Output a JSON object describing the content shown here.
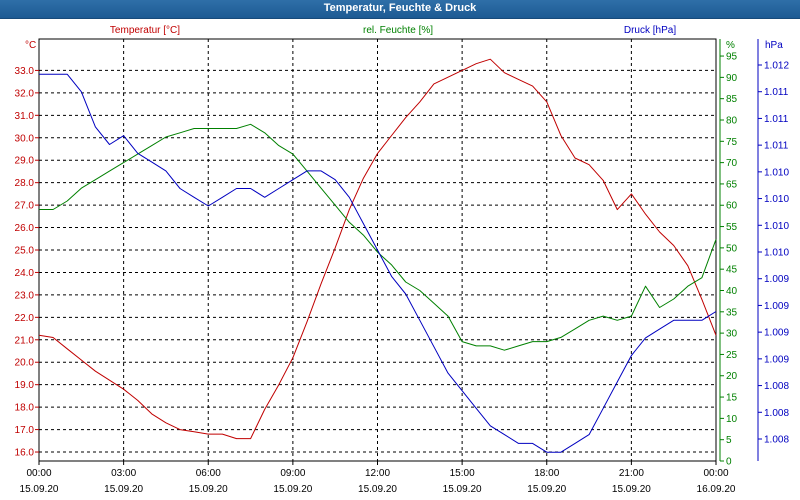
{
  "window": {
    "title": "Temperatur, Feuchte & Druck"
  },
  "colors": {
    "temperature": "#c00000",
    "humidity": "#008000",
    "pressure": "#0000c0",
    "grid": "#000000",
    "axis": "#000000"
  },
  "chart_data": {
    "type": "line",
    "title": "Temperatur, Feuchte & Druck",
    "grid": true,
    "x_axis": {
      "ticks": [
        {
          "time": "00:00",
          "date": "15.09.20"
        },
        {
          "time": "03:00",
          "date": "15.09.20"
        },
        {
          "time": "06:00",
          "date": "15.09.20"
        },
        {
          "time": "09:00",
          "date": "15.09.20"
        },
        {
          "time": "12:00",
          "date": "15.09.20"
        },
        {
          "time": "15:00",
          "date": "15.09.20"
        },
        {
          "time": "18:00",
          "date": "15.09.20"
        },
        {
          "time": "21:00",
          "date": "15.09.20"
        },
        {
          "time": "00:00",
          "date": "16.09.20"
        }
      ],
      "range_hours": [
        0,
        24
      ]
    },
    "axes": {
      "temperature": {
        "label": "Temperatur [°C]",
        "unit": "°C",
        "range": [
          15.6,
          34.4
        ],
        "ticks": [
          "16.0",
          "17.0",
          "18.0",
          "19.0",
          "20.0",
          "21.0",
          "22.0",
          "23.0",
          "24.0",
          "25.0",
          "26.0",
          "27.0",
          "28.0",
          "29.0",
          "30.0",
          "31.0",
          "32.0",
          "33.0"
        ]
      },
      "humidity": {
        "label": "rel. Feuchte [%]",
        "unit": "%",
        "range": [
          0,
          99
        ],
        "ticks": [
          "0",
          "5",
          "10",
          "15",
          "20",
          "25",
          "30",
          "35",
          "40",
          "45",
          "50",
          "55",
          "60",
          "65",
          "70",
          "75",
          "80",
          "85",
          "90",
          "95"
        ]
      },
      "pressure": {
        "label": "Druck [hPa]",
        "unit": "hPa",
        "range": [
          1.0077,
          1.0125
        ],
        "ticks": [
          "1.008",
          "1.008",
          "1.008",
          "1.009",
          "1.009",
          "1.009",
          "1.009",
          "1.010",
          "1.010",
          "1.010",
          "1.010",
          "1.011",
          "1.011",
          "1.011",
          "1.012"
        ]
      }
    },
    "series": [
      {
        "name": "Temperatur [°C]",
        "axis": "temperature",
        "x": [
          0,
          0.5,
          1,
          1.5,
          2,
          2.5,
          3,
          3.5,
          4,
          4.5,
          5,
          5.5,
          6,
          6.5,
          7,
          7.5,
          8,
          8.5,
          9,
          9.5,
          10,
          10.5,
          11,
          11.5,
          12,
          12.5,
          13,
          13.5,
          14,
          14.5,
          15,
          15.5,
          16,
          16.5,
          17,
          17.5,
          18,
          18.5,
          19,
          19.5,
          20,
          20.5,
          21,
          21.5,
          22,
          22.5,
          23,
          23.5,
          24
        ],
        "y": [
          21.2,
          21.1,
          20.6,
          20.1,
          19.6,
          19.2,
          18.8,
          18.3,
          17.7,
          17.3,
          17.0,
          16.9,
          16.8,
          16.8,
          16.6,
          16.6,
          17.9,
          19.0,
          20.2,
          21.8,
          23.5,
          25.1,
          26.8,
          28.2,
          29.3,
          30.1,
          30.9,
          31.6,
          32.4,
          32.7,
          33.0,
          33.3,
          33.5,
          32.9,
          32.6,
          32.3,
          31.6,
          30.1,
          29.1,
          28.8,
          28.1,
          26.8,
          27.5,
          26.6,
          25.8,
          25.2,
          24.3,
          22.8,
          21.2
        ]
      },
      {
        "name": "rel. Feuchte [%]",
        "axis": "humidity",
        "x": [
          0,
          0.5,
          1,
          1.5,
          2,
          2.5,
          3,
          3.5,
          4,
          4.5,
          5,
          5.5,
          6,
          6.5,
          7,
          7.5,
          8,
          8.5,
          9,
          9.5,
          10,
          10.5,
          11,
          11.5,
          12,
          12.5,
          13,
          13.5,
          14,
          14.5,
          15,
          15.5,
          16,
          16.5,
          17,
          17.5,
          18,
          18.5,
          19,
          19.5,
          20,
          20.5,
          21,
          21.5,
          22,
          22.5,
          23,
          23.5,
          24
        ],
        "y": [
          59,
          59,
          61,
          64,
          66,
          68,
          70,
          72,
          74,
          76,
          77,
          78,
          78,
          78,
          78,
          79,
          77,
          74,
          72,
          68,
          64,
          60,
          56,
          53,
          49,
          46,
          42,
          40,
          37,
          34,
          28,
          27,
          27,
          26,
          27,
          28,
          28,
          29,
          31,
          33,
          34,
          33,
          34,
          41,
          36,
          38,
          41,
          43,
          52
        ]
      },
      {
        "name": "Druck [hPa]",
        "axis": "pressure",
        "x": [
          0,
          0.5,
          1,
          1.5,
          2,
          2.5,
          3,
          3.5,
          4,
          4.5,
          5,
          5.5,
          6,
          6.5,
          7,
          7.5,
          8,
          8.5,
          9,
          9.5,
          10,
          10.5,
          11,
          11.5,
          12,
          12.5,
          13,
          13.5,
          14,
          14.5,
          15,
          15.5,
          16,
          16.5,
          17,
          17.5,
          18,
          18.5,
          19,
          19.5,
          20,
          20.5,
          21,
          21.5,
          22,
          22.5,
          23,
          23.5,
          24
        ],
        "y": [
          1.0121,
          1.0121,
          1.0121,
          1.0119,
          1.0115,
          1.0113,
          1.0114,
          1.0112,
          1.0111,
          1.011,
          1.0108,
          1.0107,
          1.0106,
          1.0107,
          1.0108,
          1.0108,
          1.0107,
          1.0108,
          1.0109,
          1.011,
          1.011,
          1.0109,
          1.0107,
          1.0104,
          1.0101,
          1.0098,
          1.0096,
          1.0093,
          1.009,
          1.0087,
          1.0085,
          1.0083,
          1.0081,
          1.008,
          1.0079,
          1.0079,
          1.0078,
          1.0078,
          1.0079,
          1.008,
          1.0083,
          1.0086,
          1.0089,
          1.0091,
          1.0092,
          1.0093,
          1.0093,
          1.0093,
          1.0094
        ]
      }
    ]
  }
}
